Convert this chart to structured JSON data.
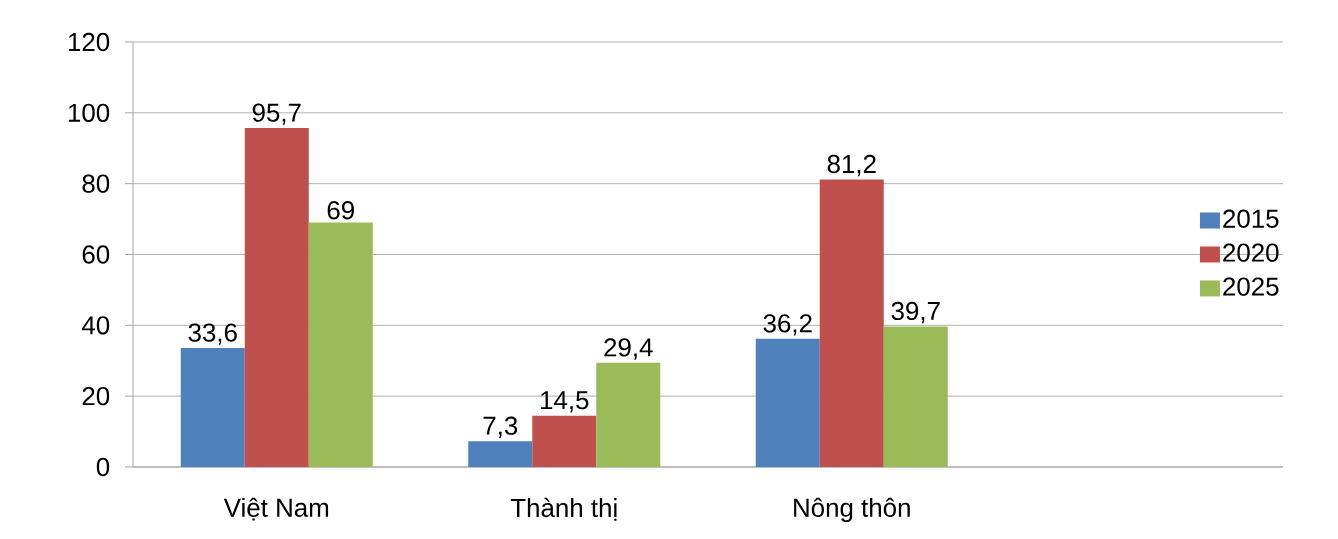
{
  "chart_data": {
    "type": "bar",
    "categories": [
      "Việt Nam",
      "Thành thị",
      "Nông thôn",
      null
    ],
    "series": [
      {
        "name": "2015",
        "color": "#4f81bd",
        "values": [
          33.6,
          7.3,
          36.2,
          null
        ],
        "value_labels": [
          "33,6",
          "7,3",
          "36,2",
          null
        ]
      },
      {
        "name": "2020",
        "color": "#c0504d",
        "values": [
          95.7,
          14.5,
          81.2,
          null
        ],
        "value_labels": [
          "95,7",
          "14,5",
          "81,2",
          null
        ]
      },
      {
        "name": "2025",
        "color": "#9bbb59",
        "values": [
          69,
          29.4,
          39.7,
          null
        ],
        "value_labels": [
          "69",
          "29,4",
          "39,7",
          null
        ]
      }
    ],
    "ylim": [
      0,
      120
    ],
    "yticks": [
      0,
      20,
      40,
      60,
      80,
      100,
      120
    ],
    "grid": "y",
    "legend": "right"
  }
}
